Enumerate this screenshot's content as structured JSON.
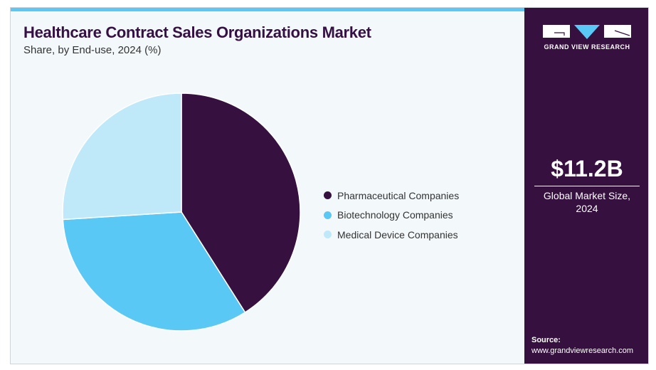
{
  "header": {
    "title": "Healthcare Contract Sales Organizations Market",
    "subtitle": "Share, by End-use, 2024 (%)"
  },
  "brand": {
    "logo_text": "GRAND VIEW RESEARCH"
  },
  "summary": {
    "value": "$11.2B",
    "label_line1": "Global Market Size,",
    "label_line2": "2024"
  },
  "source": {
    "label": "Source:",
    "url": "www.grandviewresearch.com"
  },
  "colors": {
    "accent": "#5ac8f5",
    "dark": "#36103f"
  },
  "chart_data": {
    "type": "pie",
    "title": "Healthcare Contract Sales Organizations Market",
    "subtitle": "Share, by End-use, 2024 (%)",
    "legend_position": "right",
    "categories": [
      "Pharmaceutical Companies",
      "Biotechnology Companies",
      "Medical Device Companies"
    ],
    "values": [
      41,
      33,
      26
    ],
    "colors": [
      "#36103f",
      "#5ac8f5",
      "#bfe9f9"
    ]
  }
}
